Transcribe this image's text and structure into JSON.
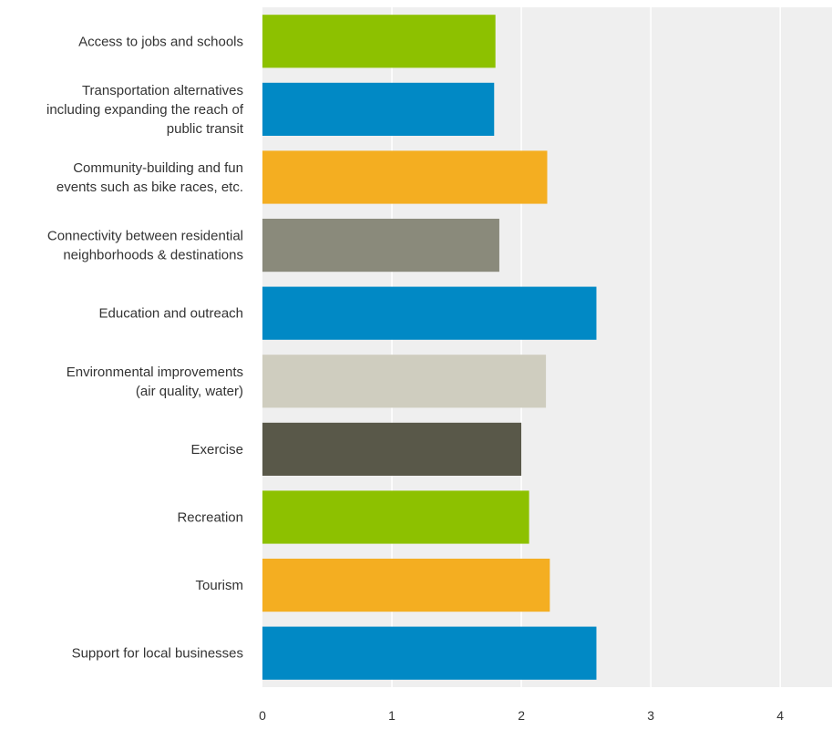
{
  "chart_data": {
    "type": "bar",
    "orientation": "horizontal",
    "categories": [
      [
        "Access to jobs and schools"
      ],
      [
        "Transportation alternatives",
        "including expanding the reach of",
        "public transit"
      ],
      [
        "Community-building and fun",
        "events such as bike races, etc."
      ],
      [
        "Connectivity between residential",
        "neighborhoods & destinations"
      ],
      [
        "Education and outreach"
      ],
      [
        "Environmental improvements",
        "(air quality, water)"
      ],
      [
        "Exercise"
      ],
      [
        "Recreation"
      ],
      [
        "Tourism"
      ],
      [
        "Support for local businesses"
      ]
    ],
    "values": [
      1.8,
      1.79,
      2.2,
      1.83,
      2.58,
      2.19,
      2.0,
      2.06,
      2.22,
      2.58
    ],
    "colors": [
      "#8dc100",
      "#0189c5",
      "#f4ae21",
      "#8a8a7b",
      "#0189c5",
      "#cfcdbf",
      "#595849",
      "#8dc100",
      "#f4ae21",
      "#0189c5"
    ],
    "xlim": [
      0,
      4.4
    ],
    "xticks": [
      0,
      1,
      2,
      3,
      4
    ],
    "grid": true,
    "plot_background": "#efefef",
    "gridline_color": "#ffffff",
    "title": "",
    "xlabel": "",
    "ylabel": ""
  }
}
